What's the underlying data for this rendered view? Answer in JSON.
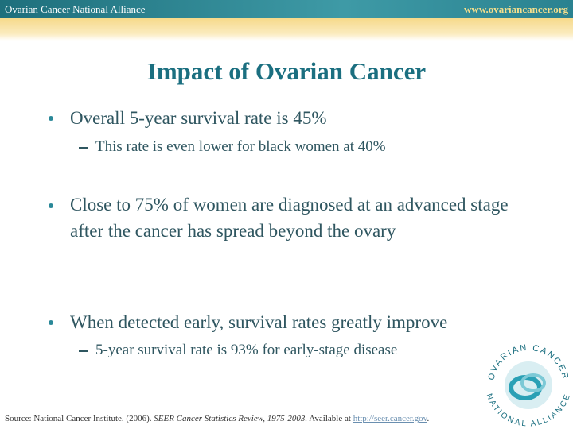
{
  "header": {
    "left": "Ovarian Cancer National Alliance",
    "right": "www.ovariancancer.org"
  },
  "title": "Impact of Ovarian Cancer",
  "bullets": [
    {
      "text": "Overall 5-year survival rate is 45%",
      "sub": [
        "This rate is even lower for black women at 40%"
      ]
    },
    {
      "text": "Close to 75% of women are diagnosed at an advanced stage after the cancer has spread beyond the ovary",
      "sub": []
    },
    {
      "text": "When detected early, survival rates greatly improve",
      "sub": [
        "5-year survival rate is 93% for early-stage disease"
      ]
    }
  ],
  "source": {
    "prefix": "Source: National Cancer Institute. (2006).",
    "publication": "SEER Cancer Statistics Review, 1975-2003.",
    "middle": "Available at",
    "link": "http://seer.cancer.gov",
    "suffix": "."
  },
  "logo": {
    "top": "OVARIAN CANCER",
    "bottom": "NATIONAL ALLIANCE"
  }
}
